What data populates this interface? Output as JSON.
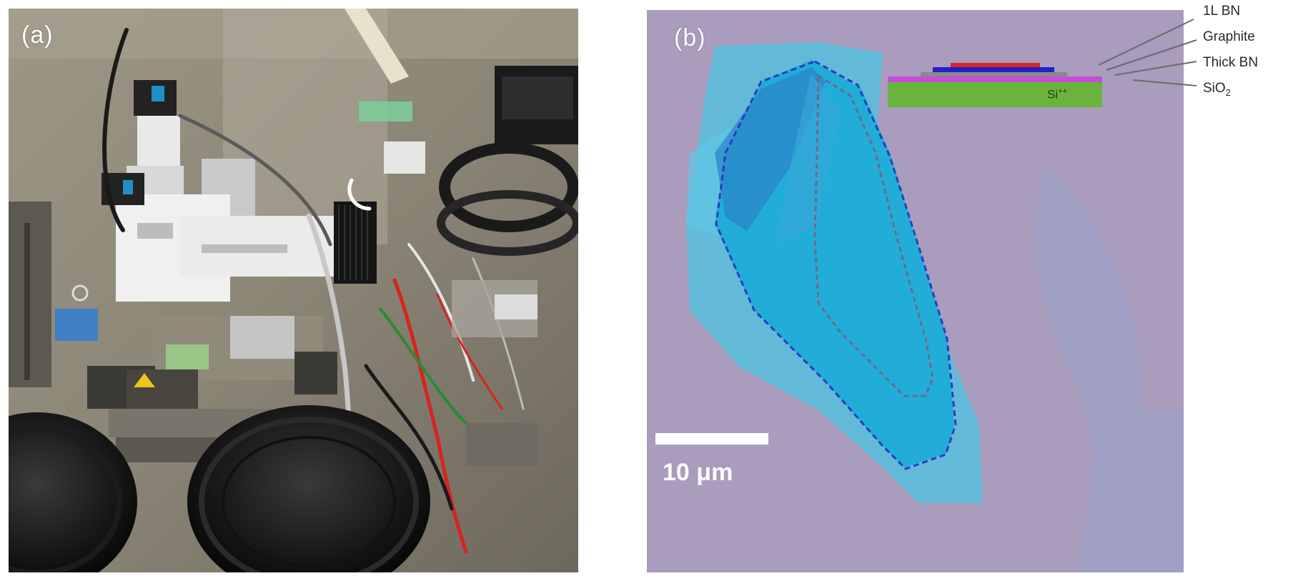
{
  "panels": {
    "a": {
      "label": "(a)"
    },
    "b": {
      "label": "(b)"
    }
  },
  "layer_stack": {
    "labels": [
      "1L BN",
      "Graphite",
      "Thick BN",
      "SiO2"
    ],
    "substrate_label": "Si++",
    "colors": {
      "bn_1l": "#e0202a",
      "graphite": "#2420c8",
      "thick_bn": "#8a8a8a",
      "sio2": "#c64fd6",
      "si": "#6ab33c"
    }
  },
  "scale_bar": {
    "label": "10 μm"
  },
  "colors": {
    "background_violet": "#a99cbc",
    "flake_cyan": "#2bb4dc",
    "outline_blue": "#2a3bc0",
    "outline_grey": "#6c6a8a"
  }
}
